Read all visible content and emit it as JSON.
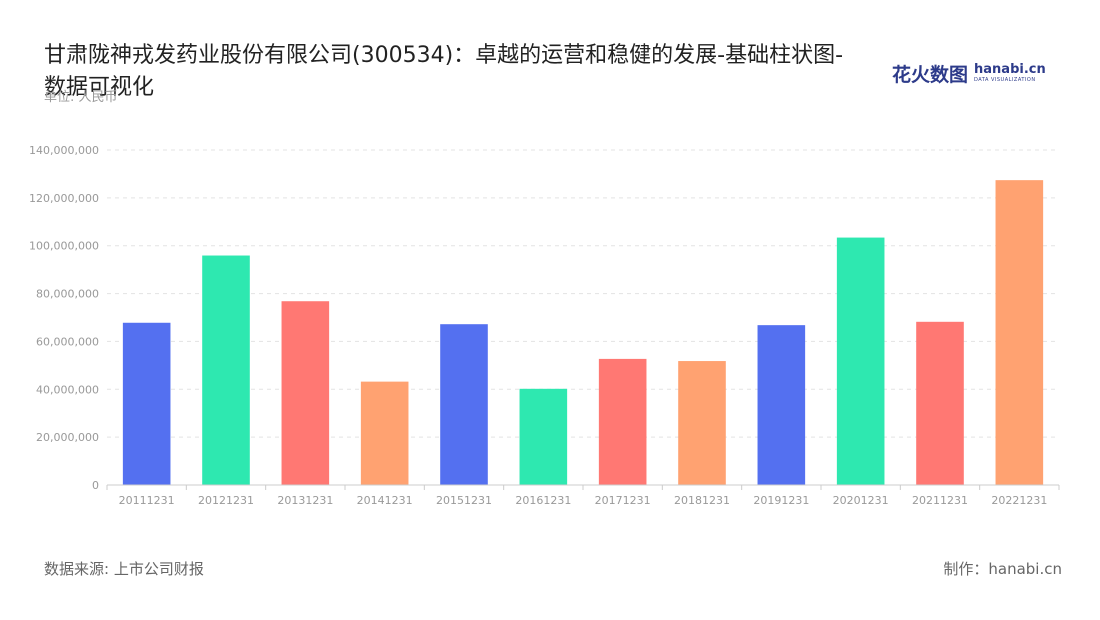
{
  "title": "甘肃陇神戎发药业股份有限公司(300534)：卓越的运营和稳健的发展-基础柱状图-数据可视化",
  "unit_label": "单位: 人民币",
  "brand": {
    "cn": "花火数图",
    "en": "hanabi.cn",
    "en_sub": "DATA VISUALIZATION"
  },
  "source": "数据来源: 上市公司财报",
  "maker_label": "制作：",
  "maker_value": "hanabi.cn",
  "colors": {
    "grid": "#e3e3e3",
    "axis": "#cccccc",
    "palette": [
      "#5470f0",
      "#2ee8b0",
      "#ff7873",
      "#ffa271"
    ]
  },
  "chart_data": {
    "type": "bar",
    "categories": [
      "20111231",
      "20121231",
      "20131231",
      "20141231",
      "20151231",
      "20161231",
      "20171231",
      "20181231",
      "20191231",
      "20201231",
      "20211231",
      "20221231"
    ],
    "values": [
      67800000,
      95900000,
      76800000,
      43200000,
      67200000,
      40200000,
      52700000,
      51800000,
      66800000,
      103400000,
      68200000,
      127400000
    ],
    "ylim": [
      0,
      140000000
    ],
    "yticks": [
      0,
      20000000,
      40000000,
      60000000,
      80000000,
      100000000,
      120000000,
      140000000
    ],
    "ytick_labels": [
      "0",
      "20,000,000",
      "40,000,000",
      "60,000,000",
      "80,000,000",
      "100,000,000",
      "120,000,000",
      "140,000,000"
    ],
    "grid": true,
    "legend": "none",
    "xlabel": "",
    "ylabel": ""
  }
}
